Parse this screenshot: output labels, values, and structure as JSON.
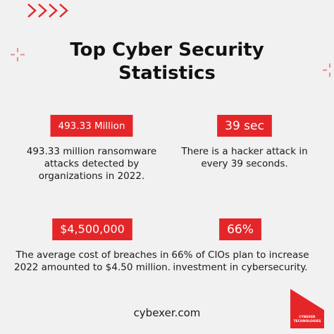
{
  "header": {
    "title": [
      "Top Cyber Security",
      "Statistics"
    ]
  },
  "stats": [
    {
      "value": "493.33 Million",
      "description": [
        "493.33 million ransomware",
        "attacks detected by",
        "organizations in 2022."
      ]
    },
    {
      "value": "39 sec",
      "description": [
        "There is a hacker attack in",
        "every 39 seconds."
      ]
    },
    {
      "value": "$4,500,000",
      "description": [
        "The average cost of breaches in",
        "2022 amounted to $4.50 million."
      ]
    },
    {
      "value": "66%",
      "description": [
        "66% of CIOs plan to increase",
        "investment in cybersecurity."
      ]
    }
  ],
  "footer": "cybexer.com",
  "logo": [
    "CYBEXER",
    "TECHNOLOGIES"
  ]
}
